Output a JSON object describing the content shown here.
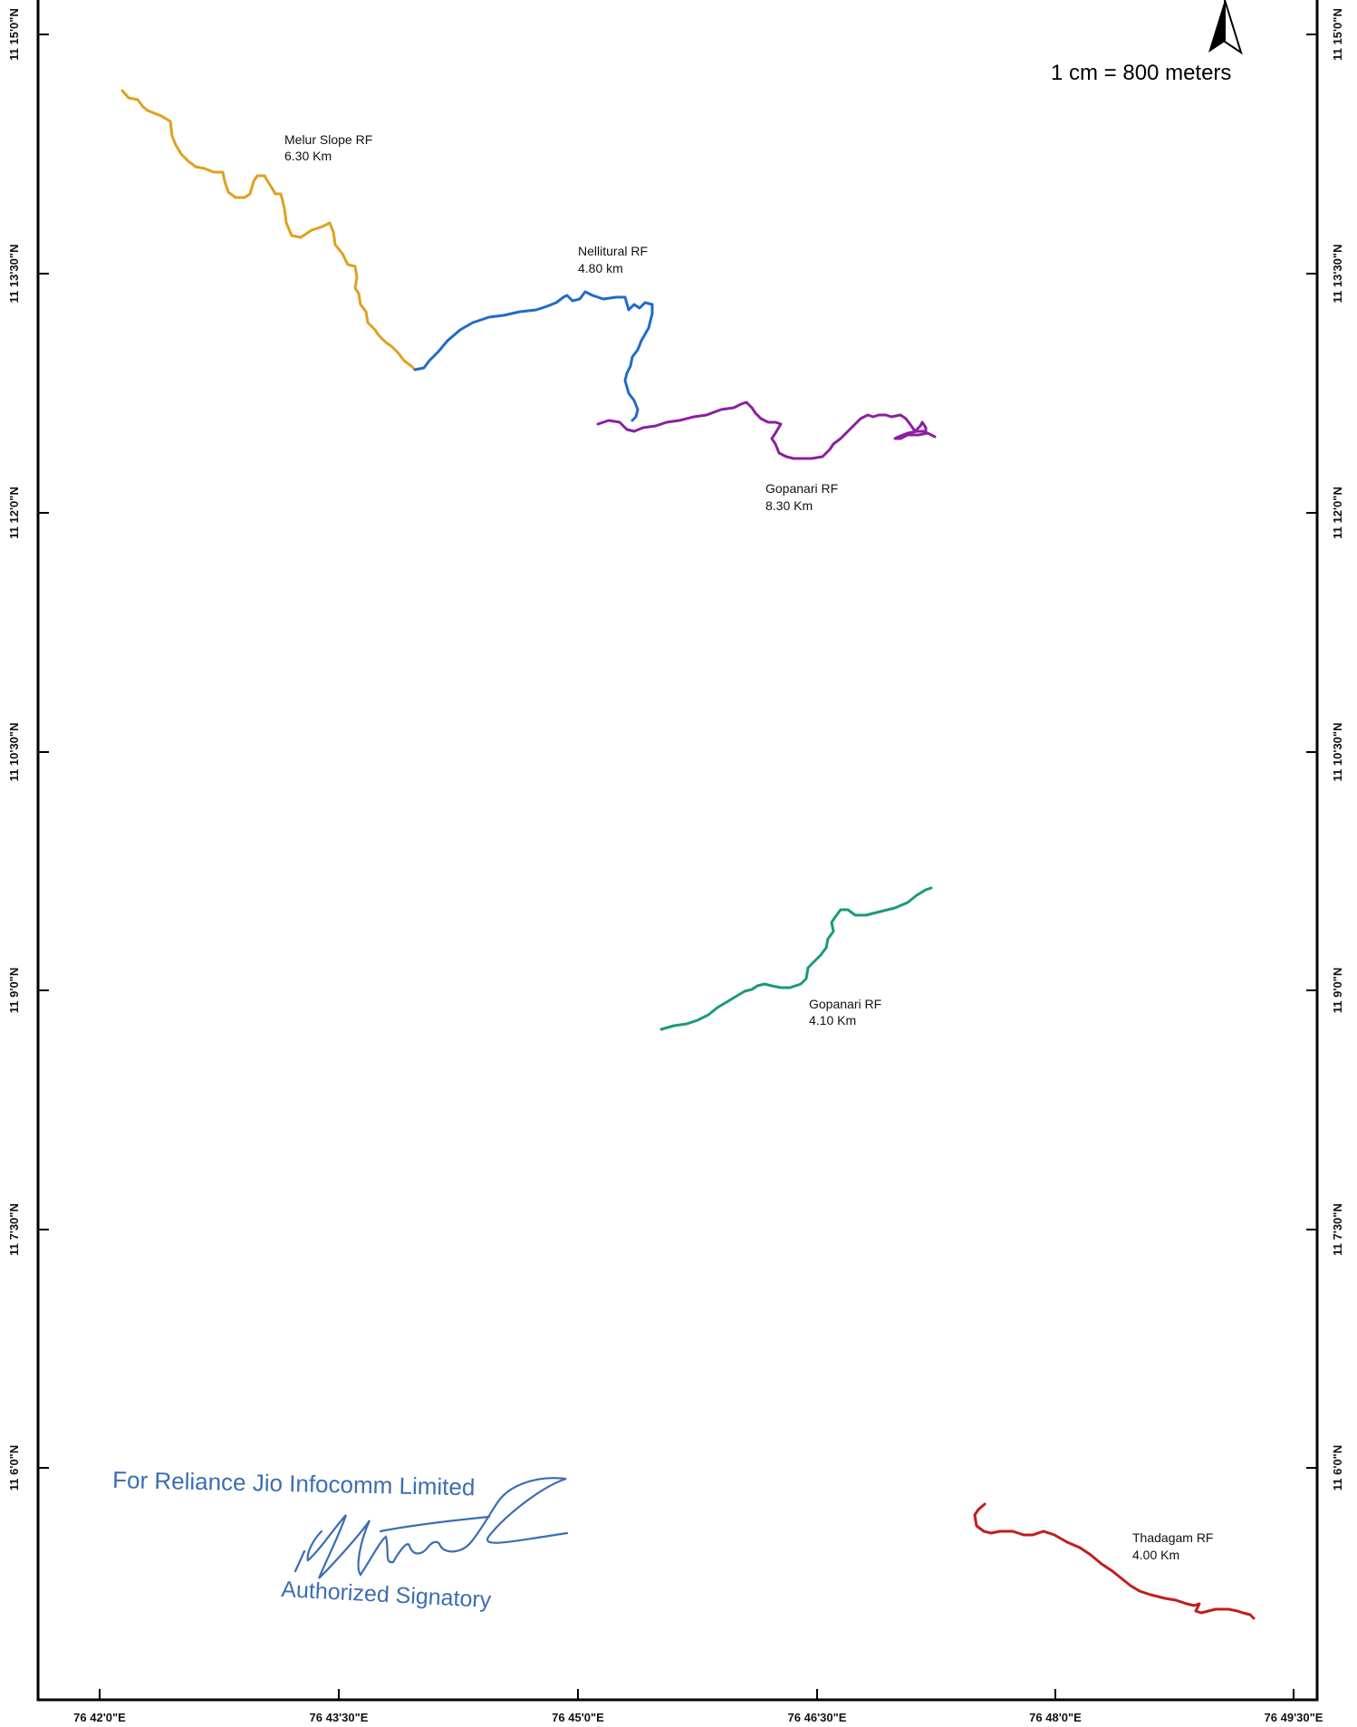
{
  "scale_text": "1 cm = 800 meters",
  "north_arrow_icon": "north-arrow-icon",
  "latitude_labels": [
    "11 15'0\"N",
    "11 13'30\"N",
    "11 12'0\"N",
    "11 10'30\"N",
    "11 9'0\"N",
    "11 7'30\"N",
    "11 6'0\"N"
  ],
  "longitude_labels": [
    "76 42'0\"E",
    "76 43'30\"E",
    "76 45'0\"E",
    "76 46'30\"E",
    "76 48'0\"E",
    "76 49'30\"E"
  ],
  "routes": [
    {
      "name": "Melur Slope RF",
      "length": "6.30 Km",
      "color": "#e0a020"
    },
    {
      "name": "Nellitural  RF",
      "length": "4.80 km",
      "color": "#1f6cc7"
    },
    {
      "name": "Gopanari RF",
      "length": "8.30 Km",
      "color": "#8b1fa0"
    },
    {
      "name": "Gopanari RF",
      "length": "4.10 Km",
      "color": "#1a9a7a"
    },
    {
      "name": "Thadagam RF",
      "length": "4.00 Km",
      "color": "#c01d1d"
    }
  ],
  "stamp": {
    "company": "For Reliance Jio Infocomm Limited",
    "role": "Authorized Signatory",
    "color": "#3b6db3"
  }
}
